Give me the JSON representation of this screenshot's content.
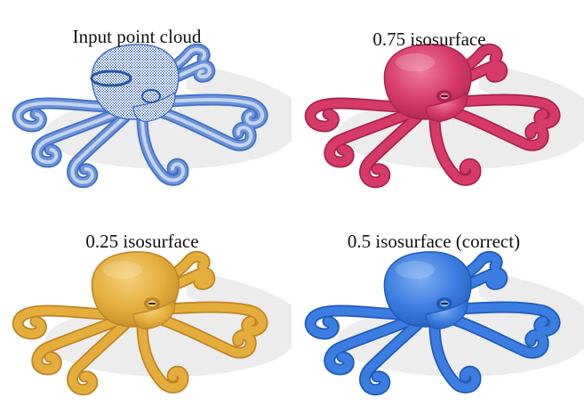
{
  "figure": {
    "panels": [
      {
        "id": "input",
        "caption": "Input point cloud",
        "style": "points",
        "color": "#3f6fc6",
        "shade": "#2b56a8",
        "hi": "#7fa0e0"
      },
      {
        "id": "iso075",
        "caption": "0.75 isosurface",
        "style": "surface",
        "color": "#d63a68",
        "shade": "#a82450",
        "hi": "#ee7da0"
      },
      {
        "id": "iso025",
        "caption": "0.25 isosurface",
        "style": "surface",
        "color": "#e5ad3c",
        "shade": "#bd8526",
        "hi": "#f4cf7a"
      },
      {
        "id": "iso05",
        "caption": "0.5 isosurface (correct)",
        "style": "surface",
        "color": "#3b7de0",
        "shade": "#1f5bb8",
        "hi": "#7eaef0"
      }
    ]
  }
}
